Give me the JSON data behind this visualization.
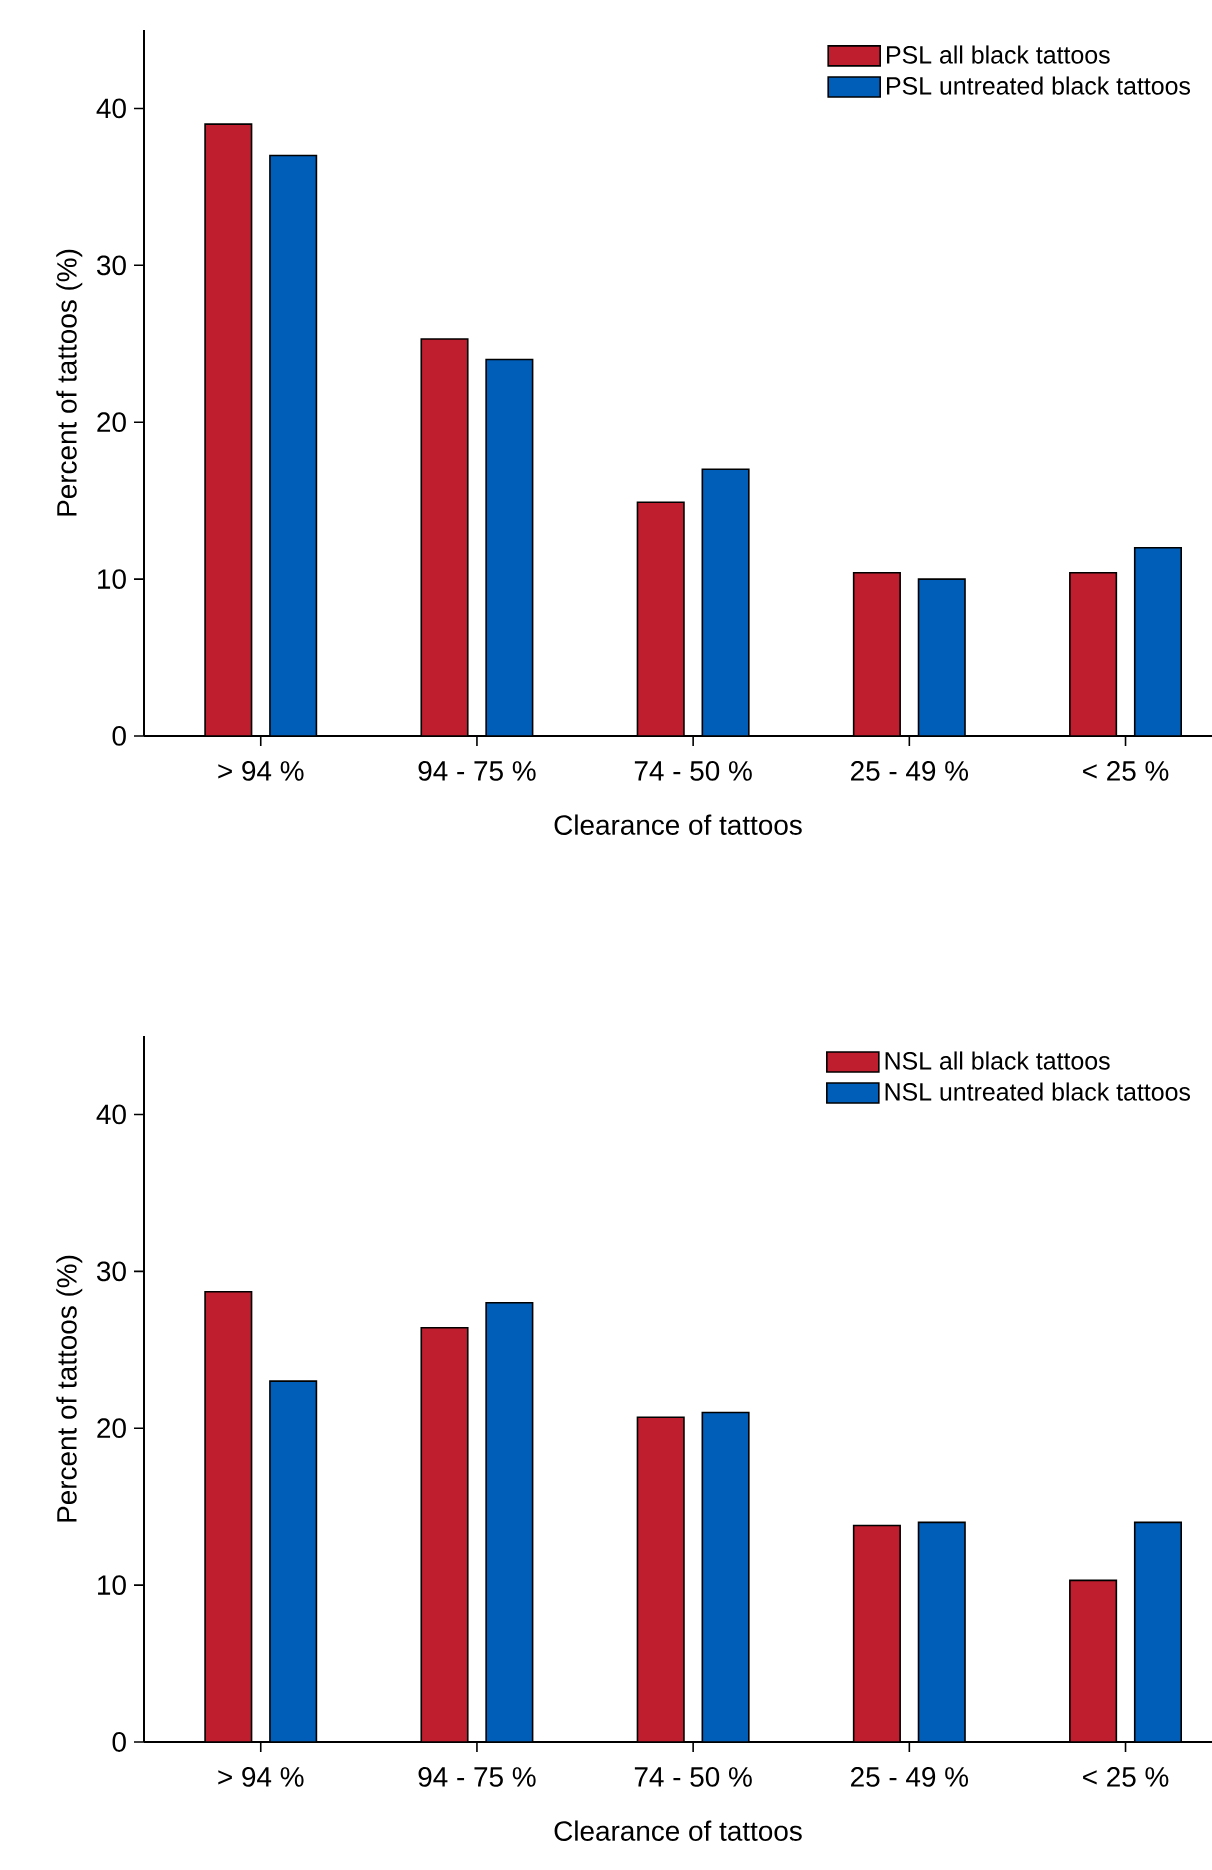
{
  "chart_data": [
    {
      "type": "bar",
      "xlabel": "Clearance of tattoos",
      "ylabel": "Percent of tattoos (%)",
      "categories": [
        "> 94 %",
        "94 - 75 %",
        "74 - 50 %",
        "25 - 49 %",
        "< 25 %"
      ],
      "series": [
        {
          "name": "PSL all black tattoos",
          "color": "#be1e2d",
          "values": [
            39,
            25.3,
            14.9,
            10.4,
            10.4
          ]
        },
        {
          "name": "PSL untreated black tattoos",
          "color": "#005eb8",
          "values": [
            37,
            24,
            17,
            10,
            12
          ]
        }
      ],
      "ylim": [
        0,
        45
      ],
      "yticks": [
        0,
        10,
        20,
        30,
        40
      ],
      "legend": "top right"
    },
    {
      "type": "bar",
      "xlabel": "Clearance of tattoos",
      "ylabel": "Percent of tattoos (%)",
      "categories": [
        "> 94 %",
        "94 - 75 %",
        "74 - 50 %",
        "25 - 49 %",
        "< 25 %"
      ],
      "series": [
        {
          "name": "NSL all black tattoos",
          "color": "#be1e2d",
          "values": [
            28.7,
            26.4,
            20.7,
            13.8,
            10.3
          ]
        },
        {
          "name": "NSL untreated black tattoos",
          "color": "#005eb8",
          "values": [
            23,
            28,
            21,
            14,
            14
          ]
        }
      ],
      "ylim": [
        0,
        45
      ],
      "yticks": [
        0,
        10,
        20,
        30,
        40
      ],
      "legend": "top right"
    }
  ]
}
